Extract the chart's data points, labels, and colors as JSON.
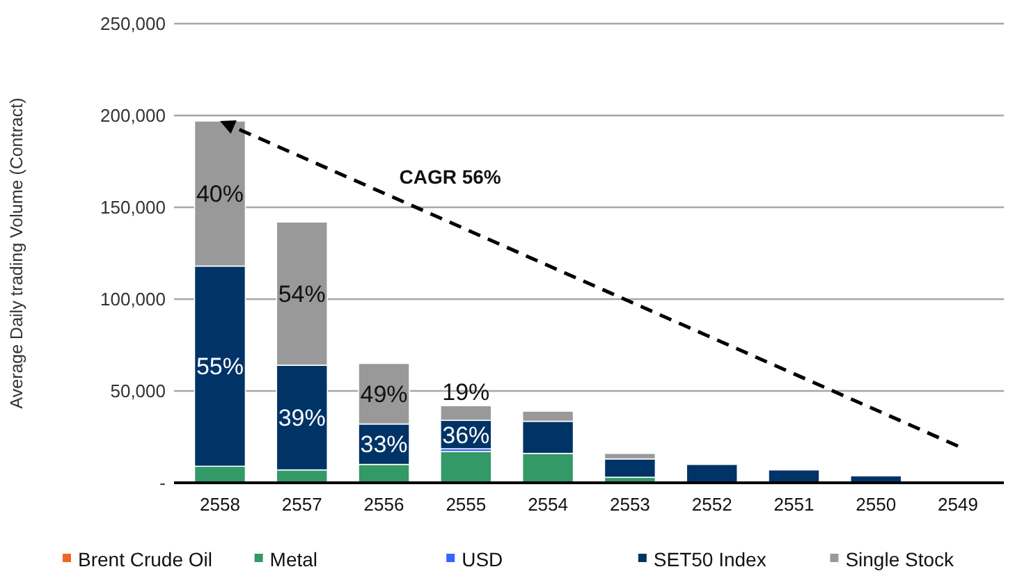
{
  "chart_data": {
    "type": "bar",
    "stacked": true,
    "ylabel": "Average Daily trading Volume (Contract)",
    "categories": [
      "2558",
      "2557",
      "2556",
      "2555",
      "2554",
      "2553",
      "2552",
      "2551",
      "2550",
      "2549"
    ],
    "series": [
      {
        "name": "Brent Crude Oil",
        "color": "#f26522",
        "values": [
          null,
          null,
          null,
          null,
          null,
          null,
          null,
          null,
          null,
          null
        ]
      },
      {
        "name": "Metal",
        "color": "#339966",
        "values": [
          9000,
          7000,
          10000,
          17000,
          16000,
          3000,
          null,
          null,
          null,
          null
        ]
      },
      {
        "name": "USD",
        "color": "#3366ff",
        "values": [
          null,
          null,
          null,
          1500,
          null,
          null,
          null,
          null,
          null,
          null
        ]
      },
      {
        "name": "SET50 Index",
        "color": "#003366",
        "values": [
          109000,
          57000,
          22000,
          15500,
          17500,
          10000,
          10000,
          7000,
          3800,
          null
        ]
      },
      {
        "name": "Single Stock",
        "color": "#999999",
        "values": [
          79000,
          78000,
          33000,
          8000,
          5500,
          3000,
          null,
          null,
          null,
          null
        ]
      }
    ],
    "ylim": [
      0,
      250000
    ],
    "yticks": [
      {
        "value": 0,
        "label": "-"
      },
      {
        "value": 50000,
        "label": "50,000"
      },
      {
        "value": 100000,
        "label": "100,000"
      },
      {
        "value": 150000,
        "label": "150,000"
      },
      {
        "value": 200000,
        "label": "200,000"
      },
      {
        "value": 250000,
        "label": "250,000"
      }
    ],
    "grid": "y",
    "legend": "bottom",
    "annotations": [
      "CAGR 56%",
      "40%",
      "55%",
      "54%",
      "39%",
      "49%",
      "33%",
      "19%",
      "36%"
    ]
  }
}
